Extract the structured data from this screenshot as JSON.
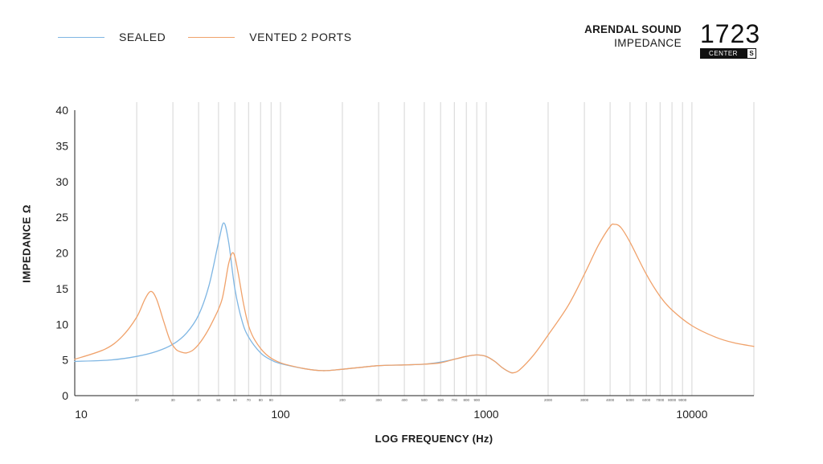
{
  "legend": [
    {
      "label": "SEALED",
      "color": "#7fb6e3"
    },
    {
      "label": "VENTED 2 PORTS",
      "color": "#f0a26b"
    }
  ],
  "brand": {
    "name": "ARENDAL SOUND",
    "subtitle": "IMPEDANCE"
  },
  "model": {
    "number": "1723",
    "variant": "CENTER",
    "badge": "S"
  },
  "chart_data": {
    "type": "line",
    "xlabel": "LOG FREQUENCY (Hz)",
    "ylabel": "IMPEDANCE Ω",
    "x_scale": "log",
    "xlim": [
      10,
      20000
    ],
    "ylim": [
      0,
      40
    ],
    "grid": "vertical",
    "yticks": [
      0,
      5,
      10,
      15,
      20,
      25,
      30,
      35,
      40
    ],
    "xticks_major": [
      {
        "value": 10,
        "label": "10"
      },
      {
        "value": 100,
        "label": "100"
      },
      {
        "value": 1000,
        "label": "1000"
      },
      {
        "value": 10000,
        "label": "10000"
      }
    ],
    "xticks_minor": [
      {
        "value": 20,
        "label": "20"
      },
      {
        "value": 30,
        "label": "30"
      },
      {
        "value": 40,
        "label": "40"
      },
      {
        "value": 50,
        "label": "50"
      },
      {
        "value": 60,
        "label": "60"
      },
      {
        "value": 70,
        "label": "70"
      },
      {
        "value": 80,
        "label": "80"
      },
      {
        "value": 90,
        "label": "90"
      },
      {
        "value": 200,
        "label": "200"
      },
      {
        "value": 300,
        "label": "300"
      },
      {
        "value": 400,
        "label": "400"
      },
      {
        "value": 500,
        "label": "500"
      },
      {
        "value": 600,
        "label": "600"
      },
      {
        "value": 700,
        "label": "700"
      },
      {
        "value": 800,
        "label": "800"
      },
      {
        "value": 900,
        "label": "900"
      },
      {
        "value": 2000,
        "label": "2000"
      },
      {
        "value": 3000,
        "label": "3000"
      },
      {
        "value": 4000,
        "label": "4000"
      },
      {
        "value": 5000,
        "label": "5000"
      },
      {
        "value": 6000,
        "label": "6000"
      },
      {
        "value": 7000,
        "label": "7000"
      },
      {
        "value": 8000,
        "label": "8000"
      },
      {
        "value": 9000,
        "label": "9000"
      }
    ],
    "series": [
      {
        "name": "SEALED",
        "color": "#7fb6e3",
        "points": [
          [
            10,
            4.8
          ],
          [
            15,
            5.0
          ],
          [
            20,
            5.5
          ],
          [
            25,
            6.2
          ],
          [
            30,
            7.2
          ],
          [
            35,
            8.8
          ],
          [
            40,
            11.3
          ],
          [
            45,
            15.5
          ],
          [
            50,
            21.5
          ],
          [
            53,
            24.2
          ],
          [
            56,
            21.5
          ],
          [
            60,
            15.0
          ],
          [
            65,
            10.5
          ],
          [
            70,
            8.2
          ],
          [
            80,
            6.0
          ],
          [
            90,
            5.0
          ],
          [
            100,
            4.5
          ],
          [
            130,
            3.8
          ],
          [
            160,
            3.5
          ],
          [
            200,
            3.7
          ],
          [
            300,
            4.2
          ],
          [
            400,
            4.3
          ],
          [
            500,
            4.4
          ],
          [
            600,
            4.7
          ],
          [
            700,
            5.1
          ],
          [
            800,
            5.5
          ],
          [
            900,
            5.7
          ],
          [
            1000,
            5.5
          ],
          [
            1100,
            4.8
          ],
          [
            1200,
            3.9
          ],
          [
            1300,
            3.3
          ],
          [
            1350,
            3.2
          ]
        ]
      },
      {
        "name": "VENTED 2 PORTS",
        "color": "#f0a26b",
        "points": [
          [
            10,
            5.1
          ],
          [
            14,
            6.5
          ],
          [
            17,
            8.3
          ],
          [
            20,
            11.0
          ],
          [
            22,
            13.6
          ],
          [
            23.5,
            14.6
          ],
          [
            25,
            13.5
          ],
          [
            27,
            10.5
          ],
          [
            29,
            7.8
          ],
          [
            31,
            6.5
          ],
          [
            33,
            6.1
          ],
          [
            35,
            6.0
          ],
          [
            38,
            6.5
          ],
          [
            42,
            8.0
          ],
          [
            47,
            10.5
          ],
          [
            52,
            13.5
          ],
          [
            56,
            18.5
          ],
          [
            59,
            20.0
          ],
          [
            62,
            17.5
          ],
          [
            66,
            13.0
          ],
          [
            70,
            9.8
          ],
          [
            75,
            7.8
          ],
          [
            85,
            5.8
          ],
          [
            100,
            4.6
          ],
          [
            130,
            3.8
          ],
          [
            160,
            3.5
          ],
          [
            200,
            3.7
          ],
          [
            300,
            4.2
          ],
          [
            400,
            4.3
          ],
          [
            500,
            4.4
          ],
          [
            600,
            4.6
          ],
          [
            700,
            5.1
          ],
          [
            800,
            5.5
          ],
          [
            900,
            5.7
          ],
          [
            1000,
            5.5
          ],
          [
            1100,
            4.8
          ],
          [
            1200,
            3.9
          ],
          [
            1300,
            3.3
          ],
          [
            1350,
            3.2
          ],
          [
            1450,
            3.6
          ],
          [
            1700,
            5.7
          ],
          [
            2000,
            8.5
          ],
          [
            2500,
            12.6
          ],
          [
            3000,
            17.0
          ],
          [
            3500,
            21.0
          ],
          [
            4000,
            23.7
          ],
          [
            4200,
            24.0
          ],
          [
            4500,
            23.6
          ],
          [
            5000,
            21.5
          ],
          [
            6000,
            17.0
          ],
          [
            7000,
            13.9
          ],
          [
            8000,
            12.0
          ],
          [
            10000,
            9.8
          ],
          [
            13000,
            8.2
          ],
          [
            16000,
            7.4
          ],
          [
            20000,
            6.9
          ]
        ]
      }
    ]
  }
}
